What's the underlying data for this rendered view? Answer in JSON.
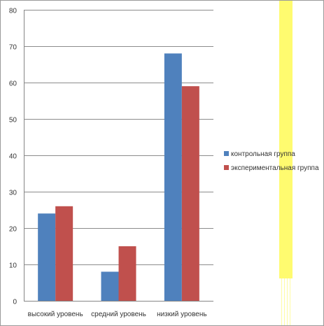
{
  "chart_data": {
    "type": "bar",
    "categories": [
      "высокий уровень",
      "средний уровень",
      "низкий уровень"
    ],
    "series": [
      {
        "name": "контрольная группа",
        "values": [
          24,
          8,
          68
        ],
        "color": "#4f81bd"
      },
      {
        "name": "экспериментальная группа",
        "values": [
          26,
          15,
          59
        ],
        "color": "#c0504d"
      }
    ],
    "yticks": [
      0,
      10,
      20,
      30,
      40,
      50,
      60,
      70,
      80
    ],
    "ylim": [
      0,
      80
    ],
    "grid": true,
    "legend": "right",
    "title": "",
    "xlabel": "",
    "ylabel": ""
  },
  "decor": {
    "highlight_color": "#fffb6f"
  }
}
